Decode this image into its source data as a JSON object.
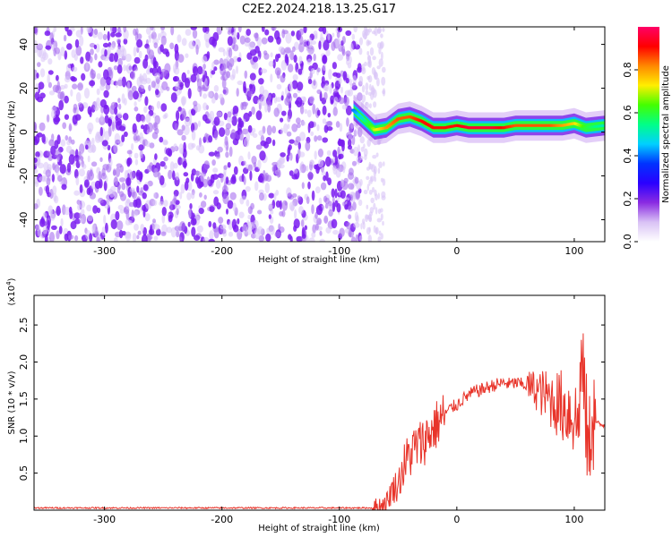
{
  "figure_title": "C2E2.2024.218.13.25.G17",
  "chart_data": [
    {
      "type": "heatmap",
      "title": "C2E2.2024.218.13.25.G17",
      "xlabel": "Height of straight line (km)",
      "ylabel": "Frequency (Hz)",
      "xlim": [
        -360,
        126
      ],
      "ylim": [
        -50,
        48
      ],
      "xticks": [
        -300,
        -200,
        -100,
        0,
        100
      ],
      "yticks": [
        -40,
        -20,
        0,
        20,
        40
      ],
      "colorbar": {
        "label": "Normalized spectral amplitude",
        "range": [
          0,
          1
        ],
        "ticks": [
          0.0,
          0.2,
          0.4,
          0.6,
          0.8
        ],
        "colormap": [
          "#ffffff",
          "#d9c2f5",
          "#8a2be2",
          "#2a00ff",
          "#0033ff",
          "#00d0ff",
          "#00ff88",
          "#44ff00",
          "#ffee00",
          "#ff8800",
          "#ff0000",
          "#ff0066"
        ]
      },
      "noise_region": {
        "x_range": [
          -360,
          -82
        ],
        "y_range": [
          -50,
          48
        ],
        "level": 0.2
      },
      "signal_ridge": {
        "x": [
          -88,
          -80,
          -70,
          -60,
          -50,
          -40,
          -30,
          -20,
          -10,
          0,
          10,
          20,
          30,
          40,
          50,
          60,
          70,
          80,
          90,
          100,
          110,
          126
        ],
        "y": [
          10,
          6,
          1,
          2,
          6,
          7,
          5,
          2,
          2,
          3,
          2,
          2,
          2,
          2,
          3,
          3,
          3,
          3,
          3,
          4,
          2,
          3
        ],
        "amplitude": [
          0.4,
          0.5,
          0.7,
          0.8,
          0.85,
          0.85,
          0.9,
          0.9,
          0.9,
          0.9,
          0.95,
          0.95,
          0.95,
          0.9,
          0.85,
          0.85,
          0.85,
          0.85,
          0.8,
          0.75,
          0.6,
          0.5
        ]
      }
    },
    {
      "type": "line",
      "xlabel": "Height of straight line (km)",
      "ylabel": "SNR (10 * v/v)",
      "y_multiplier": "(x10",
      "y_multiplier_exp": "4",
      "y_multiplier_close": ")",
      "xlim": [
        -360,
        126
      ],
      "ylim": [
        0,
        2.9
      ],
      "xticks": [
        -300,
        -200,
        -100,
        0,
        100
      ],
      "yticks": [
        0.5,
        1.0,
        1.5,
        2.0,
        2.5
      ],
      "ytick_labels": [
        "0.5",
        "1.0",
        "1.5",
        "2.0",
        "2.5"
      ],
      "series": [
        {
          "color": "#e8342a",
          "x": [
            -360,
            -300,
            -200,
            -100,
            -72,
            -66,
            -60,
            -55,
            -50,
            -45,
            -40,
            -35,
            -30,
            -25,
            -20,
            -15,
            -10,
            -5,
            0,
            5,
            10,
            15,
            20,
            25,
            30,
            35,
            40,
            45,
            50,
            55,
            60,
            65,
            70,
            75,
            80,
            85,
            90,
            95,
            100,
            103,
            106,
            109,
            112,
            115,
            118,
            122,
            126
          ],
          "y": [
            0.03,
            0.03,
            0.03,
            0.03,
            0.03,
            0.06,
            0.1,
            0.28,
            0.35,
            0.6,
            0.75,
            0.85,
            0.9,
            1.0,
            1.1,
            1.2,
            1.3,
            1.38,
            1.42,
            1.5,
            1.55,
            1.6,
            1.62,
            1.65,
            1.68,
            1.7,
            1.72,
            1.7,
            1.72,
            1.7,
            1.68,
            1.65,
            1.6,
            1.55,
            1.5,
            1.45,
            1.4,
            1.35,
            1.3,
            1.1,
            2.0,
            1.5,
            0.7,
            1.3,
            1.2,
            1.15,
            1.15
          ]
        }
      ]
    }
  ]
}
